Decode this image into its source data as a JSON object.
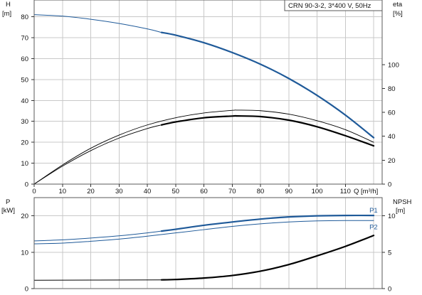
{
  "title": "CRN 90-3-2, 3*400 V, 50Hz",
  "colors": {
    "blue": "#1f5a99",
    "black": "#000000",
    "grid": "#c8c8c8",
    "frame": "#5a5a5a"
  },
  "chart_data": [
    {
      "type": "line",
      "name": "top",
      "x_label": "Q [m³/h]",
      "x_ticks": [
        "0",
        "10",
        "20",
        "30",
        "40",
        "50",
        "60",
        "70",
        "80",
        "90",
        "100",
        "110"
      ],
      "xlim": [
        0,
        123
      ],
      "left_axis": {
        "label_line1": "H",
        "label_line2": "[m]",
        "ticks": [
          "0",
          "10",
          "20",
          "30",
          "40",
          "50",
          "60",
          "70",
          "80"
        ],
        "ylim": [
          0,
          88
        ]
      },
      "right_axis": {
        "label_line1": "eta",
        "label_line2": "[%]",
        "ticks": [
          "0",
          "20",
          "40",
          "60",
          "80",
          "100"
        ],
        "ylim": [
          0,
          154
        ]
      },
      "series": [
        {
          "axis": "left",
          "color": "#1f5a99",
          "width": 1.0,
          "x": [
            0,
            10,
            20,
            30,
            40,
            45
          ],
          "y": [
            81,
            80.3,
            78.8,
            76.8,
            74.2,
            72.5
          ]
        },
        {
          "axis": "left",
          "color": "#1f5a99",
          "width": 2.2,
          "x": [
            45,
            50,
            60,
            70,
            80,
            90,
            100,
            110,
            120
          ],
          "y": [
            72.5,
            71.2,
            67.6,
            62.9,
            57.3,
            50.5,
            42.4,
            33.0,
            22.2
          ]
        },
        {
          "axis": "right",
          "color": "#000000",
          "width": 0.9,
          "x": [
            0,
            10,
            20,
            30,
            40,
            45
          ],
          "y": [
            0,
            15,
            28,
            38.5,
            46.5,
            49.5
          ]
        },
        {
          "axis": "right",
          "color": "#000000",
          "width": 2.2,
          "x": [
            45,
            50,
            60,
            70,
            72,
            80,
            90,
            100,
            110,
            120
          ],
          "y": [
            49.5,
            52,
            55.5,
            56.9,
            57,
            56.5,
            53.5,
            48,
            40.5,
            32
          ]
        },
        {
          "axis": "right",
          "color": "#000000",
          "width": 0.9,
          "x": [
            0,
            10,
            20,
            30,
            40,
            50,
            60,
            70,
            72,
            80,
            90,
            100,
            110,
            120
          ],
          "y": [
            0,
            16,
            30,
            41,
            49.5,
            55.5,
            59.5,
            61.7,
            61.9,
            61.4,
            58.5,
            53,
            45.5,
            35
          ]
        }
      ]
    },
    {
      "type": "line",
      "name": "bottom",
      "xlim": [
        0,
        123
      ],
      "left_axis": {
        "label_line1": "P",
        "label_line2": "[kW]",
        "ticks": [
          "0",
          "10",
          "20"
        ],
        "ylim": [
          0,
          25
        ]
      },
      "right_axis": {
        "label_line1": "NPSH",
        "label_line2": "[m]",
        "ticks": [
          "0",
          "5",
          "10"
        ],
        "ylim": [
          0,
          12.5
        ]
      },
      "series": [
        {
          "axis": "left",
          "color": "#1f5a99",
          "width": 1.0,
          "label": "",
          "x": [
            0,
            10,
            20,
            30,
            40,
            45
          ],
          "y": [
            13.1,
            13.4,
            13.9,
            14.5,
            15.3,
            15.8
          ]
        },
        {
          "axis": "left",
          "color": "#1f5a99",
          "width": 2.2,
          "label": "P1",
          "x": [
            45,
            50,
            60,
            70,
            80,
            90,
            100,
            110,
            120
          ],
          "y": [
            15.8,
            16.3,
            17.4,
            18.3,
            19.1,
            19.7,
            20.0,
            20.1,
            20.1
          ]
        },
        {
          "axis": "left",
          "color": "#1f5a99",
          "width": 1.0,
          "label": "P2",
          "x": [
            0,
            10,
            20,
            30,
            40,
            50,
            60,
            70,
            80,
            90,
            100,
            110,
            120
          ],
          "y": [
            12.3,
            12.5,
            13.0,
            13.6,
            14.4,
            15.3,
            16.2,
            17.1,
            17.8,
            18.3,
            18.6,
            18.7,
            18.7
          ]
        },
        {
          "axis": "right",
          "color": "#000000",
          "width": 1.0,
          "label": "",
          "x": [
            0,
            45
          ],
          "y": [
            1.15,
            1.2
          ]
        },
        {
          "axis": "right",
          "color": "#000000",
          "width": 2.2,
          "label": "",
          "x": [
            45,
            50,
            60,
            70,
            80,
            90,
            100,
            110,
            120
          ],
          "y": [
            1.2,
            1.25,
            1.45,
            1.8,
            2.4,
            3.3,
            4.5,
            5.8,
            7.3
          ]
        }
      ]
    }
  ]
}
